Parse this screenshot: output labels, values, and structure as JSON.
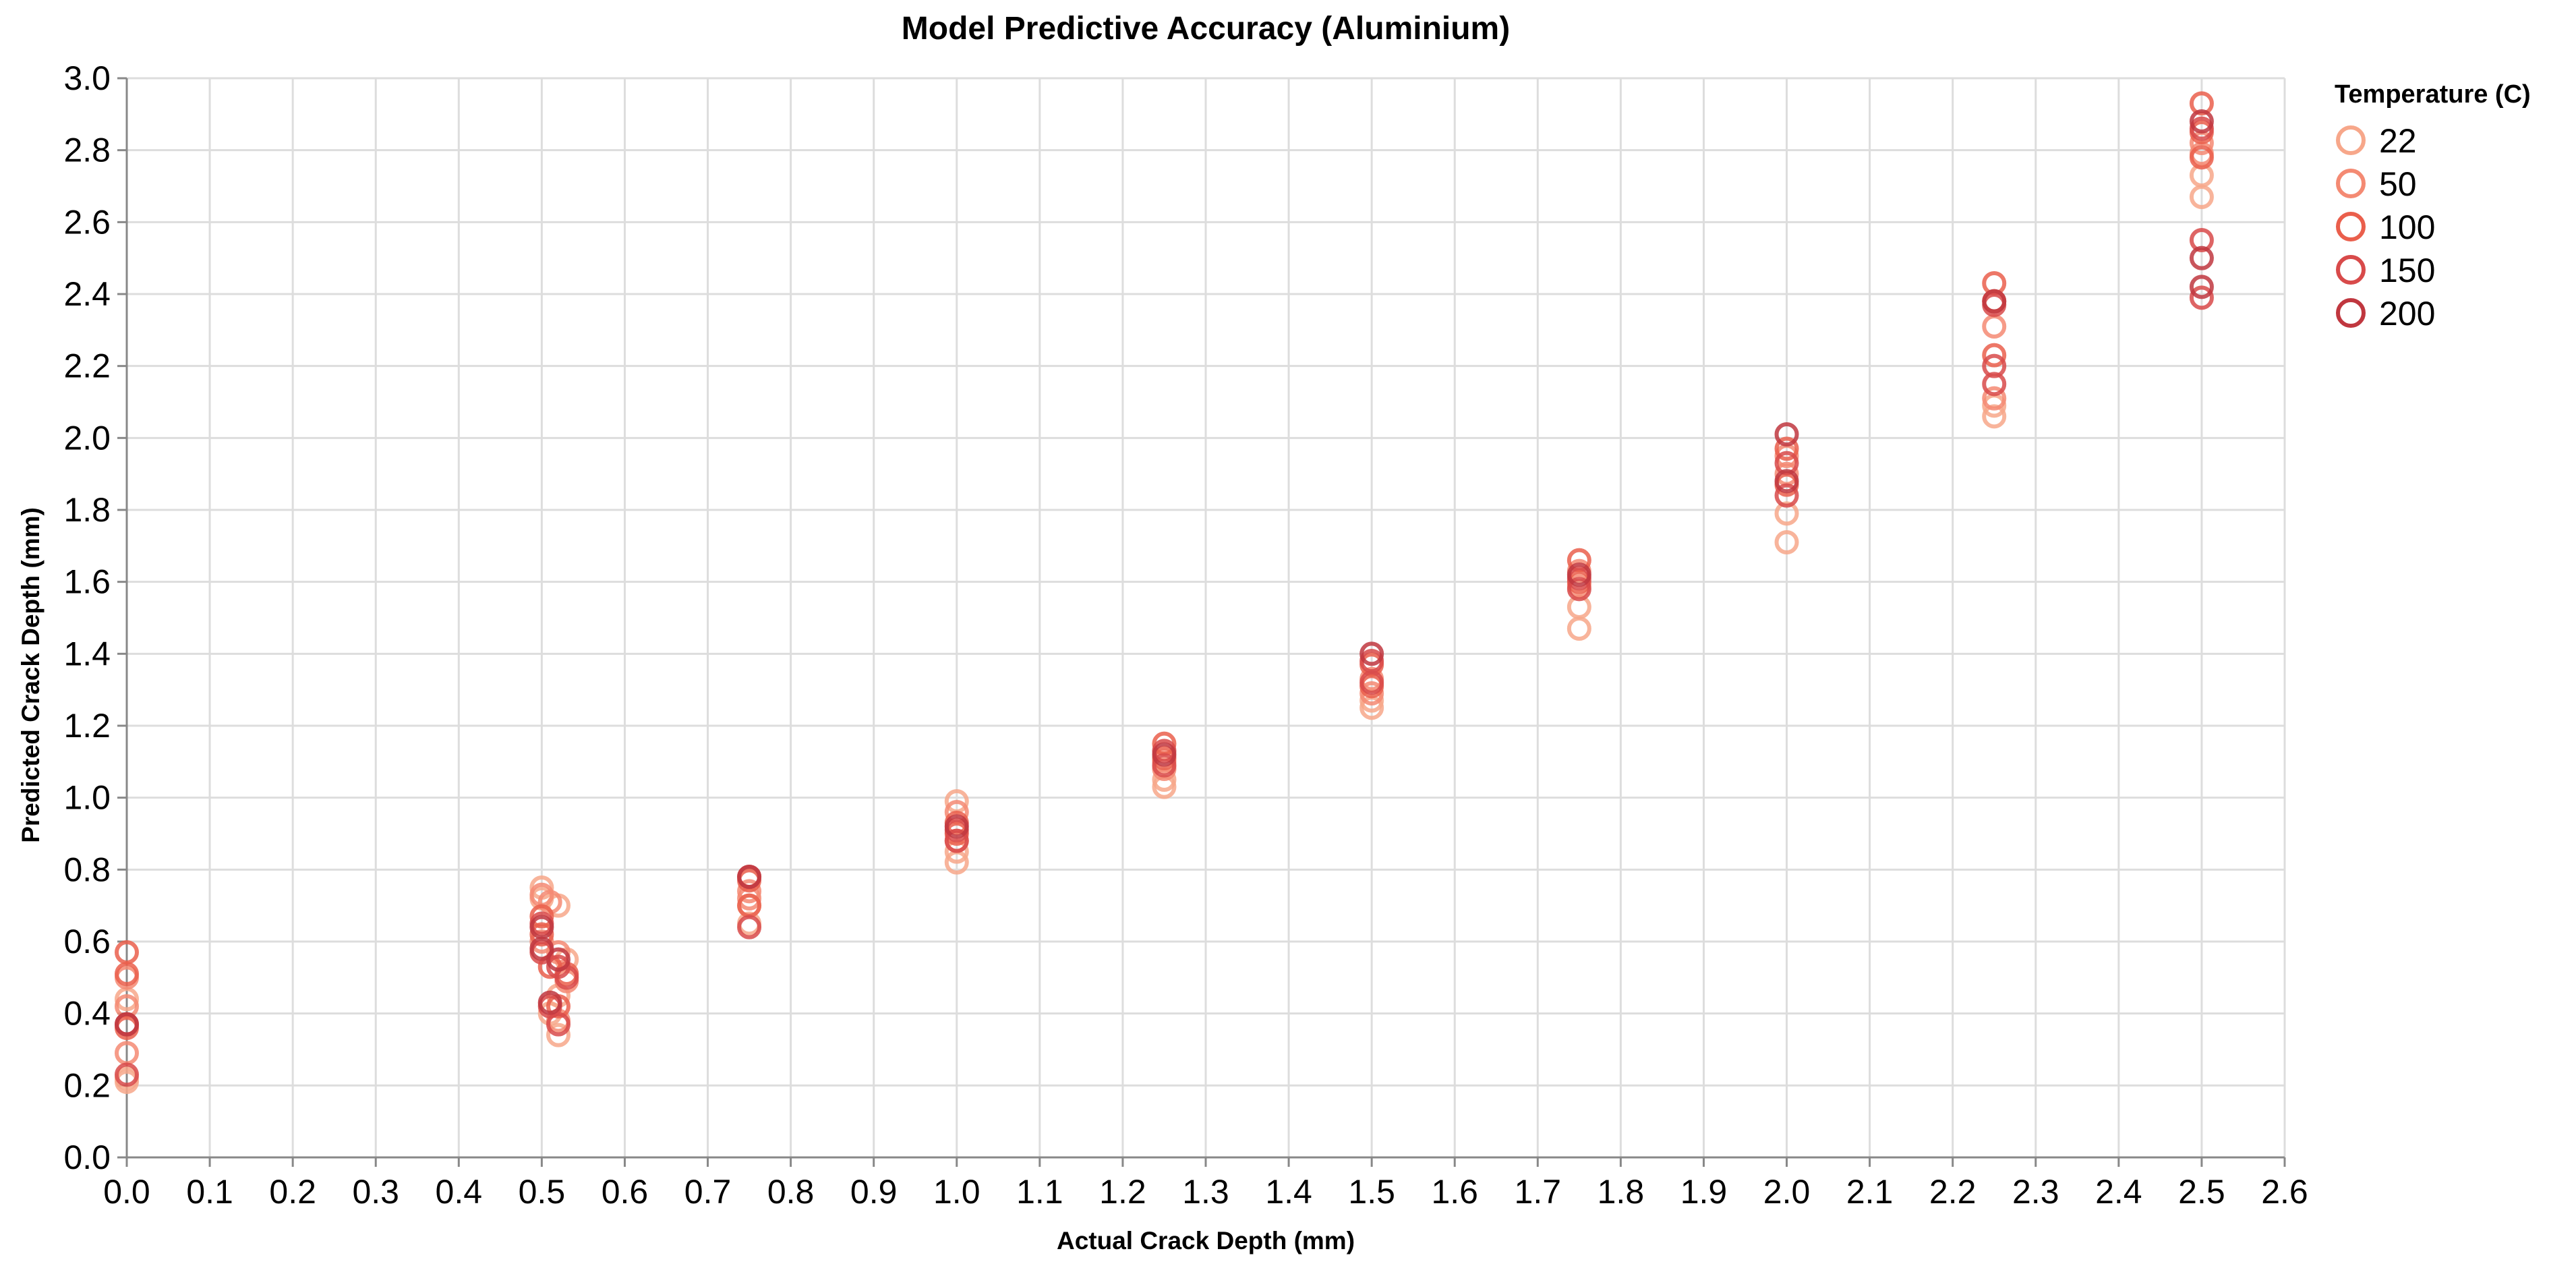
{
  "chart_data": {
    "type": "scatter",
    "title": "Model Predictive Accuracy (Aluminium)",
    "xlabel": "Actual Crack Depth (mm)",
    "ylabel": "Predicted Crack Depth (mm)",
    "xlim": [
      0,
      2.6
    ],
    "ylim": [
      0,
      3.0
    ],
    "x_ticks": [
      "0.0",
      "0.1",
      "0.2",
      "0.3",
      "0.4",
      "0.5",
      "0.6",
      "0.7",
      "0.8",
      "0.9",
      "1.0",
      "1.1",
      "1.2",
      "1.3",
      "1.4",
      "1.5",
      "1.6",
      "1.7",
      "1.8",
      "1.9",
      "2.0",
      "2.1",
      "2.2",
      "2.3",
      "2.4",
      "2.5",
      "2.6"
    ],
    "y_ticks": [
      "0.0",
      "0.2",
      "0.4",
      "0.6",
      "0.8",
      "1.0",
      "1.2",
      "1.4",
      "1.6",
      "1.8",
      "2.0",
      "2.2",
      "2.4",
      "2.6",
      "2.8",
      "3.0"
    ],
    "grid": true,
    "legend": {
      "title": "Temperature (C)",
      "placement": "top-right",
      "entries": [
        {
          "label": "22",
          "color": "#f7a78a"
        },
        {
          "label": "50",
          "color": "#f48a73"
        },
        {
          "label": "100",
          "color": "#ea5f4c"
        },
        {
          "label": "150",
          "color": "#d84a4a"
        },
        {
          "label": "200",
          "color": "#c0373f"
        }
      ]
    },
    "series": [
      {
        "name": "22",
        "color": "#f7a78a",
        "points": [
          [
            0,
            0.21
          ],
          [
            0,
            0.22
          ],
          [
            0,
            0.44
          ],
          [
            0.5,
            0.75
          ],
          [
            0.5,
            0.72
          ],
          [
            0.52,
            0.34
          ],
          [
            0.51,
            0.4
          ],
          [
            0.52,
            0.45
          ],
          [
            0.53,
            0.55
          ],
          [
            0.52,
            0.7
          ],
          [
            0.75,
            0.65
          ],
          [
            0.75,
            0.7
          ],
          [
            1.0,
            0.82
          ],
          [
            1.0,
            0.85
          ],
          [
            1.0,
            0.99
          ],
          [
            1.25,
            1.03
          ],
          [
            1.25,
            1.05
          ],
          [
            1.5,
            1.25
          ],
          [
            1.5,
            1.27
          ],
          [
            1.75,
            1.47
          ],
          [
            1.75,
            1.53
          ],
          [
            2.0,
            1.71
          ],
          [
            2.0,
            1.79
          ],
          [
            2.25,
            2.06
          ],
          [
            2.25,
            2.09
          ],
          [
            2.5,
            2.67
          ],
          [
            2.5,
            2.73
          ]
        ]
      },
      {
        "name": "50",
        "color": "#f48a73",
        "points": [
          [
            0,
            0.29
          ],
          [
            0,
            0.42
          ],
          [
            0,
            0.5
          ],
          [
            0.5,
            0.6
          ],
          [
            0.5,
            0.73
          ],
          [
            0.52,
            0.38
          ],
          [
            0.53,
            0.49
          ],
          [
            0.52,
            0.57
          ],
          [
            0.51,
            0.71
          ],
          [
            0.75,
            0.72
          ],
          [
            0.75,
            0.74
          ],
          [
            1.0,
            0.88
          ],
          [
            1.0,
            0.96
          ],
          [
            1.25,
            1.08
          ],
          [
            1.25,
            1.1
          ],
          [
            1.5,
            1.29
          ],
          [
            1.5,
            1.33
          ],
          [
            1.75,
            1.59
          ],
          [
            1.75,
            1.63
          ],
          [
            2.0,
            1.9
          ],
          [
            2.0,
            1.95
          ],
          [
            2.25,
            2.11
          ],
          [
            2.25,
            2.31
          ],
          [
            2.5,
            2.79
          ],
          [
            2.5,
            2.82
          ]
        ]
      },
      {
        "name": "100",
        "color": "#ea5f4c",
        "points": [
          [
            0,
            0.36
          ],
          [
            0,
            0.51
          ],
          [
            0,
            0.57
          ],
          [
            0.5,
            0.62
          ],
          [
            0.5,
            0.67
          ],
          [
            0.52,
            0.42
          ],
          [
            0.53,
            0.51
          ],
          [
            0.51,
            0.53
          ],
          [
            0.75,
            0.7
          ],
          [
            0.75,
            0.77
          ],
          [
            1.0,
            0.9
          ],
          [
            1.0,
            0.93
          ],
          [
            1.25,
            1.11
          ],
          [
            1.25,
            1.15
          ],
          [
            1.5,
            1.31
          ],
          [
            1.5,
            1.37
          ],
          [
            1.75,
            1.6
          ],
          [
            1.75,
            1.66
          ],
          [
            2.0,
            1.87
          ],
          [
            2.0,
            1.97
          ],
          [
            2.25,
            2.23
          ],
          [
            2.25,
            2.38
          ],
          [
            2.25,
            2.43
          ],
          [
            2.5,
            2.78
          ],
          [
            2.5,
            2.85
          ],
          [
            2.5,
            2.93
          ]
        ]
      },
      {
        "name": "150",
        "color": "#d84a4a",
        "points": [
          [
            0,
            0.23
          ],
          [
            0,
            0.37
          ],
          [
            0.5,
            0.57
          ],
          [
            0.5,
            0.65
          ],
          [
            0.51,
            0.42
          ],
          [
            0.52,
            0.37
          ],
          [
            0.53,
            0.5
          ],
          [
            0.52,
            0.53
          ],
          [
            0.75,
            0.64
          ],
          [
            0.75,
            0.78
          ],
          [
            1.0,
            0.91
          ],
          [
            1.0,
            0.88
          ],
          [
            1.25,
            1.09
          ],
          [
            1.25,
            1.13
          ],
          [
            1.5,
            1.32
          ],
          [
            1.5,
            1.38
          ],
          [
            1.75,
            1.58
          ],
          [
            1.75,
            1.61
          ],
          [
            2.0,
            1.84
          ],
          [
            2.0,
            1.93
          ],
          [
            2.25,
            2.15
          ],
          [
            2.25,
            2.2
          ],
          [
            2.25,
            2.37
          ],
          [
            2.5,
            2.39
          ],
          [
            2.5,
            2.55
          ],
          [
            2.5,
            2.86
          ]
        ]
      },
      {
        "name": "200",
        "color": "#c0373f",
        "points": [
          [
            0,
            0.37
          ],
          [
            0.5,
            0.58
          ],
          [
            0.5,
            0.64
          ],
          [
            0.51,
            0.43
          ],
          [
            0.52,
            0.55
          ],
          [
            0.75,
            0.78
          ],
          [
            1.0,
            0.92
          ],
          [
            1.25,
            1.12
          ],
          [
            1.5,
            1.4
          ],
          [
            1.75,
            1.62
          ],
          [
            2.0,
            1.88
          ],
          [
            2.0,
            2.01
          ],
          [
            2.25,
            2.38
          ],
          [
            2.5,
            2.42
          ],
          [
            2.5,
            2.5
          ],
          [
            2.5,
            2.88
          ]
        ]
      }
    ]
  }
}
